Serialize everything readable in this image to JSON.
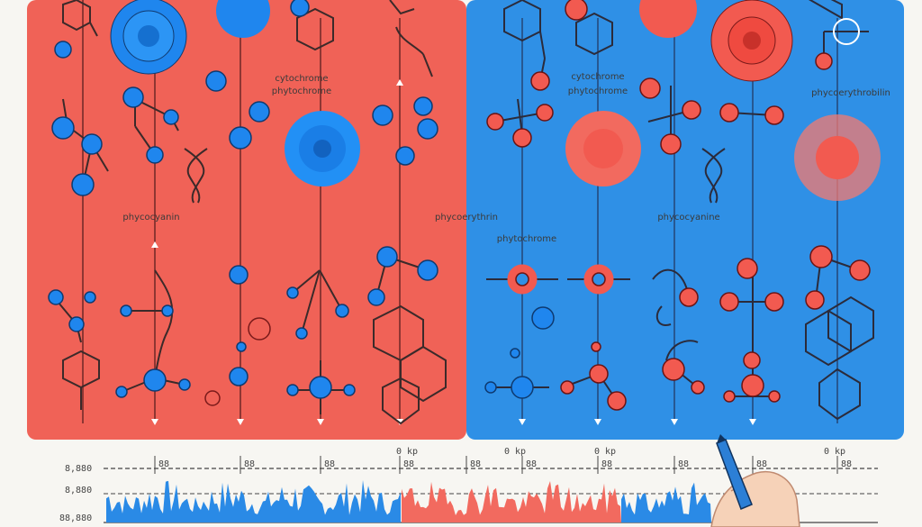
{
  "colors": {
    "background": "#f7f6f2",
    "left_panel": "#f06257",
    "right_panel": "#2f90e6",
    "blue_node": "#1f86ee",
    "red_node": "#f25a50",
    "bond_line": "#3b2a2a",
    "peaks_blue": "#2a8ae6",
    "peaks_red": "#f26a5f",
    "pen": "#2c7fd6",
    "hand": "#f6d2b8"
  },
  "labels": {
    "left_top_a": "cytochrome",
    "left_top_b": "phytochrome",
    "left_mid": "phycocyanin",
    "center_mid": "phycoerythrin",
    "right_mid_a": "phytochrome",
    "right_mid_b": "phycocyanine",
    "right_top_a": "cytochrome",
    "right_top_b": "phytochrome",
    "right_top_c": "phycoerythrobilin"
  },
  "spectrum": {
    "y_labels": [
      "8,880",
      "8,880",
      "88,880"
    ],
    "tick_labels": [
      "88",
      "88",
      "88",
      "88",
      "88",
      "88",
      "88",
      "88",
      "88",
      "88"
    ],
    "marker_labels": [
      "0 kp",
      "0 kp",
      "0 kp",
      "0 kp"
    ]
  },
  "icons": [
    "flower-icon",
    "molecule-icon",
    "dna-helix-icon",
    "pen-icon",
    "hand-icon"
  ]
}
